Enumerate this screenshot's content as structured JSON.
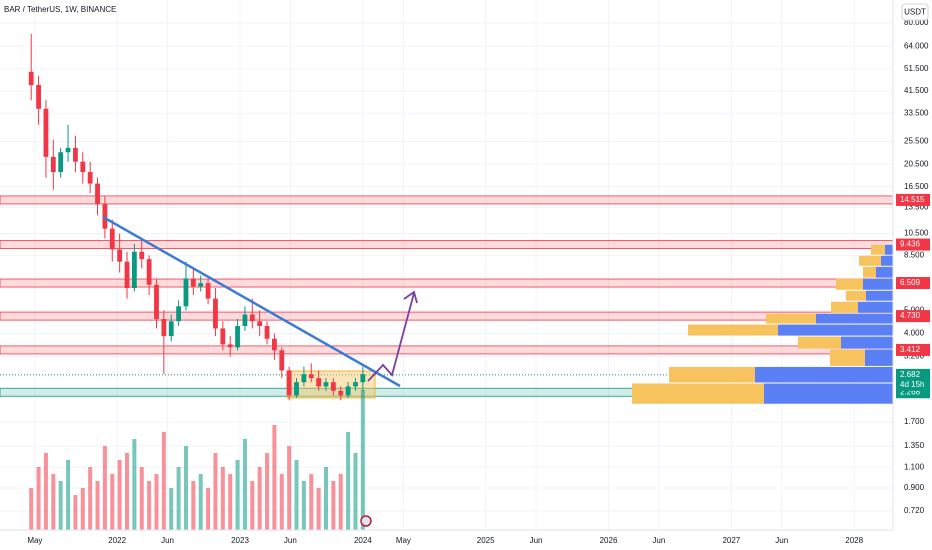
{
  "chart_data": {
    "type": "candlestick",
    "title": "BAR / TetherUS, 1W, BINANCE",
    "currency": "USDT",
    "log_scale": true,
    "grid": true,
    "ylim": [
      0.6,
      100
    ],
    "yticks": [
      {
        "value": 80,
        "label": "80.000"
      },
      {
        "value": 64,
        "label": "64.000"
      },
      {
        "value": 51.5,
        "label": "51.500"
      },
      {
        "value": 41.5,
        "label": "41.500"
      },
      {
        "value": 33.5,
        "label": "33.500"
      },
      {
        "value": 25.5,
        "label": "25.500"
      },
      {
        "value": 20.5,
        "label": "20.500"
      },
      {
        "value": 16.5,
        "label": "16.500"
      },
      {
        "value": 13.5,
        "label": "13.500"
      },
      {
        "value": 10.5,
        "label": "10.500"
      },
      {
        "value": 8.5,
        "label": "8.500"
      },
      {
        "value": 5,
        "label": "5.000"
      },
      {
        "value": 4,
        "label": "4.000"
      },
      {
        "value": 3.2,
        "label": "3.200"
      },
      {
        "value": 1.7,
        "label": "1.700"
      },
      {
        "value": 1.35,
        "label": "1.350"
      },
      {
        "value": 1.1,
        "label": "1.100"
      },
      {
        "value": 0.9,
        "label": "0.900"
      },
      {
        "value": 0.72,
        "label": "0.720"
      }
    ],
    "xlim": [
      2021.046,
      2028.316
    ],
    "xticks": [
      {
        "value": 2021.33,
        "label": "May"
      },
      2022,
      {
        "value": 2022.41,
        "label": "Jun"
      },
      2023,
      {
        "value": 2023.41,
        "label": "Jun"
      },
      2024,
      {
        "value": 2024.33,
        "label": "May"
      },
      2025,
      {
        "value": 2025.41,
        "label": "Jun"
      },
      2026,
      {
        "value": 2026.41,
        "label": "Jun"
      },
      2027,
      {
        "value": 2027.41,
        "label": "Jun"
      },
      2028
    ],
    "up_color": "#089981",
    "down_color": "#f23645",
    "x": [
      2021.3,
      2021.36,
      2021.42,
      2021.48,
      2021.54,
      2021.6,
      2021.66,
      2021.72,
      2021.78,
      2021.84,
      2021.9,
      2021.96,
      2022.02,
      2022.08,
      2022.14,
      2022.2,
      2022.26,
      2022.32,
      2022.38,
      2022.44,
      2022.5,
      2022.56,
      2022.62,
      2022.68,
      2022.74,
      2022.8,
      2022.86,
      2022.92,
      2022.98,
      2023.04,
      2023.1,
      2023.16,
      2023.22,
      2023.28,
      2023.34,
      2023.4,
      2023.46,
      2023.52,
      2023.58,
      2023.64,
      2023.7,
      2023.76,
      2023.82,
      2023.88,
      2023.94,
      2024.0
    ],
    "open": [
      50,
      44,
      35,
      22,
      19,
      23,
      24,
      21,
      19,
      17,
      14,
      11,
      9,
      8,
      6.2,
      8.8,
      8.2,
      6.4,
      4.6,
      3.9,
      4.5,
      5.2,
      6.8,
      6.3,
      6.5,
      5.6,
      4.2,
      3.6,
      3.5,
      4.3,
      4.8,
      4.5,
      4.3,
      3.8,
      3.4,
      2.8,
      2.2,
      2.5,
      2.7,
      2.6,
      2.4,
      2.5,
      2.3,
      2.2,
      2.4,
      2.5
    ],
    "high": [
      72,
      48,
      38,
      26,
      24,
      30,
      27,
      23,
      21,
      18,
      15,
      12,
      10.5,
      8.8,
      9.5,
      10,
      8.5,
      6.8,
      5,
      4.8,
      5.5,
      8,
      7.5,
      7,
      6.8,
      6.2,
      4.5,
      3.9,
      4.6,
      5.2,
      5.6,
      5,
      4.5,
      4,
      3.5,
      2.9,
      2.6,
      2.9,
      3,
      2.8,
      2.6,
      2.6,
      2.4,
      2.5,
      2.6,
      2.9
    ],
    "low": [
      38,
      30,
      18,
      16,
      18,
      21,
      19,
      17,
      15.5,
      12.5,
      10,
      8,
      7.2,
      5.6,
      6,
      7.5,
      5.8,
      4.2,
      2.7,
      3.7,
      4.3,
      5,
      5.8,
      6,
      5.3,
      3.9,
      3.4,
      3.2,
      3.4,
      4.1,
      4.2,
      3.9,
      3.6,
      3.1,
      2.6,
      2.1,
      2.15,
      2.4,
      2.5,
      2.3,
      2.3,
      2.2,
      2.1,
      2.15,
      2.3,
      2.3
    ],
    "close": [
      44,
      35,
      22,
      19,
      23,
      24,
      21,
      19,
      17,
      14,
      11,
      9,
      8,
      6.2,
      8.8,
      8.2,
      6.4,
      4.6,
      3.9,
      4.5,
      5.2,
      6.8,
      6.3,
      6.5,
      5.6,
      4.2,
      3.6,
      3.5,
      4.3,
      4.8,
      4.5,
      4.3,
      3.8,
      3.4,
      2.8,
      2.2,
      2.5,
      2.7,
      2.6,
      2.4,
      2.5,
      2.3,
      2.2,
      2.4,
      2.5,
      2.7
    ],
    "volume": [
      30,
      45,
      55,
      40,
      35,
      50,
      25,
      30,
      45,
      35,
      60,
      40,
      50,
      55,
      65,
      45,
      35,
      40,
      70,
      30,
      45,
      60,
      35,
      40,
      30,
      55,
      45,
      40,
      50,
      65,
      35,
      45,
      55,
      75,
      40,
      60,
      50,
      35,
      40,
      30,
      45,
      35,
      40,
      70,
      55,
      100
    ],
    "levels": [
      {
        "value": 14.515,
        "color": "#f23645"
      },
      {
        "value": 9.436,
        "color": "#f23645"
      },
      {
        "value": 6.509,
        "color": "#f23645"
      },
      {
        "value": 4.73,
        "label": "4.730",
        "color": "#f23645"
      },
      {
        "value": 3.412,
        "color": "#f23645"
      },
      {
        "value": 2.268,
        "color": "#089981"
      }
    ],
    "last_price": 2.682,
    "countdown": "4d 15h",
    "volume_profile": {
      "bands": [
        [
          2.02,
          2.48
        ],
        [
          2.48,
          2.91
        ],
        [
          2.91,
          3.44
        ],
        [
          3.44,
          3.9
        ],
        [
          3.9,
          4.38
        ],
        [
          4.38,
          4.86
        ],
        [
          4.86,
          5.46
        ],
        [
          5.46,
          6.07
        ],
        [
          6.07,
          6.82
        ],
        [
          6.82,
          7.65
        ],
        [
          7.65,
          8.51
        ],
        [
          8.51,
          9.46
        ]
      ],
      "series": [
        {
          "color": "#f7c35f",
          "values": [
            132,
            86,
            35,
            43,
            90,
            50,
            27,
            20,
            27,
            13,
            22,
            14
          ]
        },
        {
          "color": "#5b7ff5",
          "values": [
            129,
            138,
            28,
            52,
            115,
            77,
            35,
            27,
            30,
            17,
            12,
            8
          ]
        }
      ]
    }
  }
}
